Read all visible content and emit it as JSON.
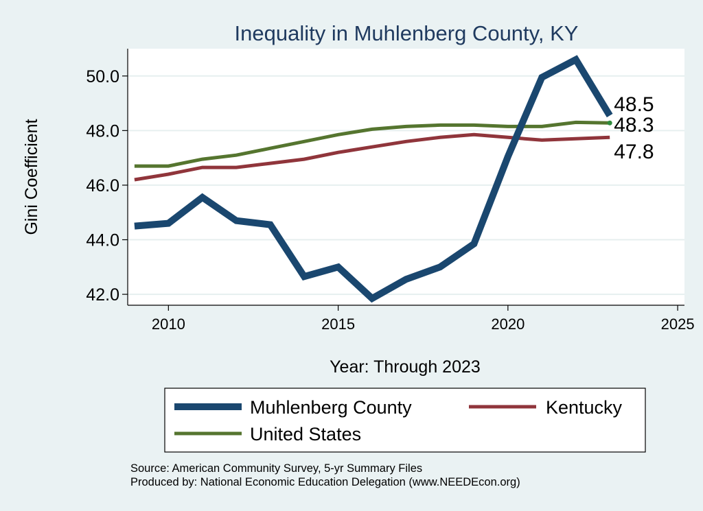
{
  "chart_data": {
    "type": "line",
    "title": "Inequality in Muhlenberg County, KY",
    "xlabel": "Year: Through 2023",
    "ylabel": "Gini Coefficient",
    "xlim": [
      2008.8,
      2025.2
    ],
    "ylim": [
      41.6,
      51.0
    ],
    "x_ticks": [
      2010,
      2015,
      2020,
      2025
    ],
    "y_ticks": [
      42.0,
      44.0,
      46.0,
      48.0,
      50.0
    ],
    "y_tick_labels": [
      "42.0",
      "44.0",
      "46.0",
      "48.0",
      "50.0"
    ],
    "grid": true,
    "x": [
      2009,
      2010,
      2011,
      2012,
      2013,
      2014,
      2015,
      2016,
      2017,
      2018,
      2019,
      2020,
      2021,
      2022,
      2023
    ],
    "series": [
      {
        "name": "Muhlenberg County",
        "color": "#1a476f",
        "values": [
          44.5,
          44.6,
          45.55,
          44.7,
          44.55,
          42.65,
          43.0,
          41.85,
          42.55,
          43.0,
          43.85,
          47.05,
          49.95,
          50.6,
          48.55
        ],
        "end_label": "48.5"
      },
      {
        "name": "Kentucky",
        "color": "#90353b",
        "values": [
          46.2,
          46.4,
          46.65,
          46.65,
          46.8,
          46.95,
          47.2,
          47.4,
          47.6,
          47.75,
          47.85,
          47.75,
          47.65,
          47.7,
          47.75
        ],
        "end_label": "47.8"
      },
      {
        "name": "United States",
        "color": "#55752f",
        "values": [
          46.7,
          46.7,
          46.95,
          47.1,
          47.35,
          47.6,
          47.85,
          48.05,
          48.15,
          48.2,
          48.2,
          48.15,
          48.15,
          48.3,
          48.28
        ],
        "end_label": "48.3"
      }
    ],
    "legend": {
      "position": "bottom",
      "entries": [
        "Muhlenberg County",
        "Kentucky",
        "United States"
      ]
    },
    "notes": [
      "Source: American Community Survey, 5-yr Summary Files",
      "Produced by: National Economic Education Delegation (www.NEEDEcon.org)"
    ]
  }
}
